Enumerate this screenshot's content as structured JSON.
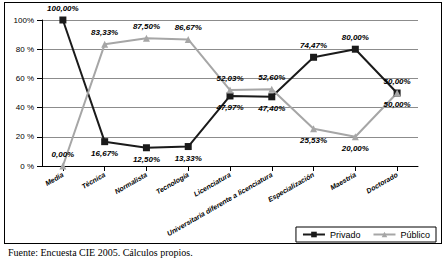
{
  "chart_data": {
    "type": "line",
    "caption": "Fuente:  Encuesta CIE 2005. Cálculos propios.",
    "categories": [
      "Media",
      "Técnica",
      "Normalista",
      "Tecnología",
      "Licenciatura",
      "Universitaria diferente a licenciatura",
      "Especialización",
      "Maestría",
      "Doctorado"
    ],
    "series": [
      {
        "name": "Privado",
        "color": "#1a1a1a",
        "marker": "square",
        "line_style": "solid",
        "values": [
          100.0,
          16.67,
          12.5,
          13.33,
          47.97,
          47.4,
          74.47,
          80.0,
          50.0
        ],
        "value_labels": [
          "100,00%",
          "16,67%",
          "12,50%",
          "13,33%",
          "47,97%",
          "47,40%",
          "74,47%",
          "80,00%",
          "50,00%"
        ]
      },
      {
        "name": "Público",
        "color": "#a6a6a6",
        "marker": "triangle",
        "line_style": "solid",
        "values": [
          0.0,
          83.33,
          87.5,
          86.67,
          52.03,
          52.6,
          25.53,
          20.0,
          50.0
        ],
        "value_labels": [
          "0,00%",
          "83,33%",
          "87,50%",
          "86,67%",
          "52,03%",
          "52,60%",
          "25,53%",
          "20,00%",
          "50,00%"
        ]
      }
    ],
    "ylim": [
      0,
      100
    ],
    "yticks": [
      {
        "value": 0,
        "label": "0 %"
      },
      {
        "value": 20,
        "label": "20 %"
      },
      {
        "value": 40,
        "label": "40 %"
      },
      {
        "value": 60,
        "label": "60 %"
      },
      {
        "value": 80,
        "label": "80 %"
      },
      {
        "value": 100,
        "label": "100%"
      }
    ],
    "grid": true,
    "legend": "bottom-right",
    "data_labels": true
  }
}
